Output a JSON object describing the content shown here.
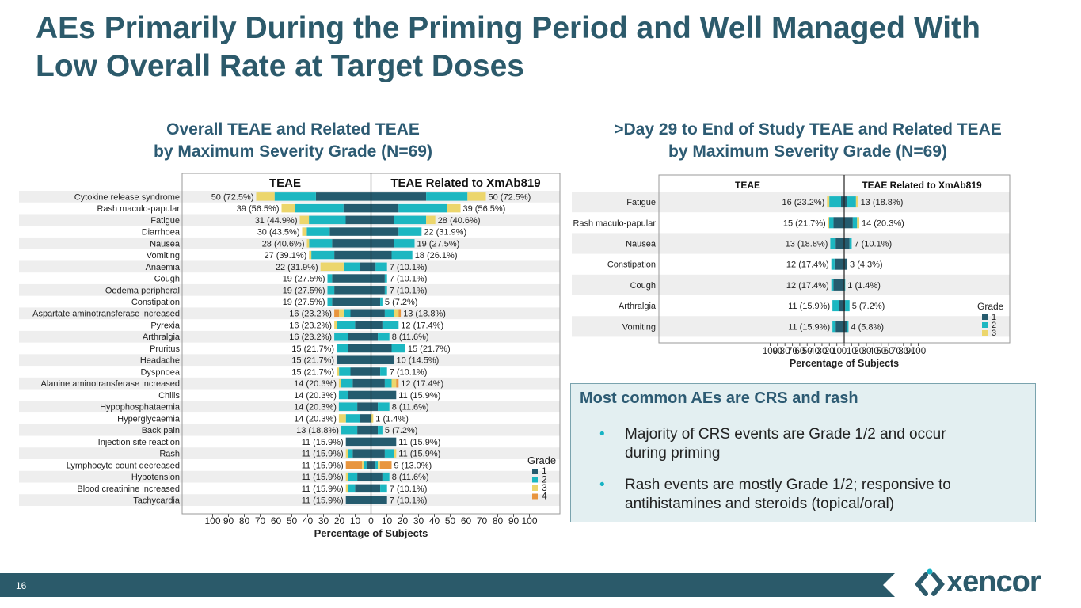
{
  "slide": {
    "title_line1": "AEs Primarily During the Priming Period and Well Managed With",
    "title_line2": "Low Overall Rate at Target Doses",
    "page_number": "16",
    "logo_text": "xencor"
  },
  "colors": {
    "title": "#2c5a6b",
    "subtitle": "#2d5b73",
    "grade1": "#255b6e",
    "grade2": "#1cb7c1",
    "grade3": "#ecd66c",
    "grade4": "#e8953e",
    "footer": "#2b5a6a",
    "callout_bg": "#e3eff1",
    "callout_border": "#7aa3ae"
  },
  "left_chart_title": {
    "line1": "Overall TEAE and Related TEAE",
    "line2": "by Maximum Severity Grade (N=69)"
  },
  "right_chart_title": {
    "line1": ">Day 29 to End of Study TEAE and Related TEAE",
    "line2": "by Maximum Severity Grade (N=69)"
  },
  "callout": {
    "heading": "Most common AEs are CRS and rash",
    "bullets": [
      {
        "line1": "Majority of CRS events are Grade 1/2 and occur",
        "line2": "during priming"
      },
      {
        "line1": "Rash events are mostly Grade 1/2; responsive to",
        "line2": "antihistamines and steroids (topical/oral)"
      }
    ]
  },
  "chart_data": [
    {
      "type": "bar",
      "subtype": "butterfly-stacked",
      "title": "Overall TEAE and Related TEAE by Maximum Severity Grade (N=69)",
      "left_panel_label": "TEAE",
      "right_panel_label": "TEAE Related to XmAb819",
      "xlabel": "Percentage of Subjects",
      "xlim": [
        -100,
        100
      ],
      "xticks": [
        "100",
        "90",
        "80",
        "70",
        "60",
        "50",
        "40",
        "30",
        "20",
        "10",
        "0",
        "10",
        "20",
        "30",
        "40",
        "50",
        "60",
        "70",
        "80",
        "90",
        "100"
      ],
      "legend_title": "Grade",
      "legend": [
        "1",
        "2",
        "3",
        "4"
      ],
      "legend_position": "bottom-right",
      "categories": [
        "Cytokine release syndrome",
        "Rash maculo-papular",
        "Fatigue",
        "Diarrhoea",
        "Nausea",
        "Vomiting",
        "Anaemia",
        "Cough",
        "Oedema peripheral",
        "Constipation",
        "Aspartate aminotransferase increased",
        "Pyrexia",
        "Arthralgia",
        "Pruritus",
        "Headache",
        "Dyspnoea",
        "Alanine aminotransferase increased",
        "Chills",
        "Hypophosphataemia",
        "Hyperglycaemia",
        "Back pain",
        "Injection site reaction",
        "Rash",
        "Lymphocyte count decreased",
        "Hypotension",
        "Blood creatinine increased",
        "Tachycardia"
      ],
      "teae_labels": [
        "50 (72.5%)",
        "39 (56.5%)",
        "31 (44.9%)",
        "30 (43.5%)",
        "28 (40.6%)",
        "27 (39.1%)",
        "22 (31.9%)",
        "19 (27.5%)",
        "19 (27.5%)",
        "19 (27.5%)",
        "16 (23.2%)",
        "16 (23.2%)",
        "16 (23.2%)",
        "15 (21.7%)",
        "15 (21.7%)",
        "15 (21.7%)",
        "14 (20.3%)",
        "14 (20.3%)",
        "14 (20.3%)",
        "14 (20.3%)",
        "13 (18.8%)",
        "11 (15.9%)",
        "11 (15.9%)",
        "11 (15.9%)",
        "11 (15.9%)",
        "11 (15.9%)",
        "11 (15.9%)"
      ],
      "related_labels": [
        "50 (72.5%)",
        "39 (56.5%)",
        "28 (40.6%)",
        "22 (31.9%)",
        "19 (27.5%)",
        "18 (26.1%)",
        "7 (10.1%)",
        "7 (10.1%)",
        "7 (10.1%)",
        "5 (7.2%)",
        "13 (18.8%)",
        "12 (17.4%)",
        "8 (11.6%)",
        "15 (21.7%)",
        "10 (14.5%)",
        "7 (10.1%)",
        "12 (17.4%)",
        "11 (15.9%)",
        "8 (11.6%)",
        "1 (1.4%)",
        "5 (7.2%)",
        "11 (15.9%)",
        "11 (15.9%)",
        "9 (13.0%)",
        "8 (11.6%)",
        "7 (10.1%)",
        "7 (10.1%)"
      ],
      "teae_series": [
        {
          "name": "1",
          "values": [
            34.8,
            17.4,
            16.0,
            26.1,
            24.6,
            23.2,
            7.2,
            24.6,
            23.2,
            24.6,
            13.0,
            10.1,
            14.5,
            14.5,
            21.7,
            13.0,
            11.6,
            14.5,
            8.7,
            7.2,
            8.7,
            15.9,
            11.6,
            2.9,
            8.7,
            10.1,
            15.9
          ]
        },
        {
          "name": "2",
          "values": [
            26.1,
            30.4,
            23.2,
            14.5,
            14.5,
            14.5,
            10.1,
            2.9,
            4.3,
            2.9,
            4.3,
            11.6,
            8.7,
            7.2,
            0,
            7.2,
            7.2,
            5.8,
            11.6,
            8.7,
            10.1,
            0,
            2.9,
            1.4,
            5.8,
            4.3,
            0
          ]
        },
        {
          "name": "3",
          "values": [
            11.6,
            8.7,
            5.8,
            2.9,
            1.4,
            1.4,
            14.6,
            0,
            0,
            0,
            2.9,
            1.5,
            0,
            0,
            0,
            1.5,
            1.5,
            0,
            0,
            4.4,
            0,
            0,
            1.4,
            1.4,
            1.4,
            1.5,
            0
          ]
        },
        {
          "name": "4",
          "values": [
            0,
            0,
            0,
            0,
            0,
            0,
            0,
            0,
            0,
            0,
            3.0,
            0,
            0,
            0,
            0,
            0,
            0,
            0,
            0,
            0,
            0,
            0,
            0,
            10.2,
            0,
            0,
            0
          ]
        }
      ],
      "related_series": [
        {
          "name": "1",
          "values": [
            34.8,
            17.4,
            14.5,
            17.4,
            14.5,
            13.0,
            2.9,
            8.7,
            8.7,
            5.8,
            8.7,
            7.2,
            4.3,
            13.0,
            14.5,
            5.8,
            8.7,
            15.9,
            4.3,
            0,
            4.3,
            15.9,
            8.7,
            2.9,
            7.2,
            5.8,
            10.1
          ]
        },
        {
          "name": "2",
          "values": [
            26.1,
            30.4,
            20.3,
            14.5,
            13.0,
            13.1,
            7.2,
            1.4,
            1.4,
            1.4,
            5.8,
            10.2,
            7.3,
            8.7,
            0,
            4.3,
            4.3,
            0,
            7.3,
            0,
            2.9,
            0,
            5.8,
            1.4,
            4.4,
            4.3,
            0
          ]
        },
        {
          "name": "3",
          "values": [
            11.6,
            8.7,
            5.8,
            0,
            0,
            0,
            0,
            0,
            0,
            0,
            2.9,
            0,
            0,
            0,
            0,
            0,
            2.9,
            0,
            0,
            1.4,
            0,
            0,
            1.4,
            1.4,
            0,
            0,
            0
          ]
        },
        {
          "name": "4",
          "values": [
            0,
            0,
            0,
            0,
            0,
            0,
            0,
            0,
            0,
            0,
            1.4,
            0,
            0,
            0,
            0,
            0,
            1.5,
            0,
            0,
            0,
            0,
            0,
            0,
            7.3,
            0,
            0,
            0
          ]
        }
      ]
    },
    {
      "type": "bar",
      "subtype": "butterfly-stacked",
      "title": ">Day 29 to End of Study TEAE and Related TEAE by Maximum Severity Grade (N=69)",
      "left_panel_label": "TEAE",
      "right_panel_label": "TEAE Related to XmAb819",
      "xlabel": "Percentage of Subjects",
      "xlim": [
        -100,
        100
      ],
      "xticks": [
        "100",
        "90",
        "80",
        "70",
        "60",
        "50",
        "40",
        "30",
        "20",
        "10",
        "0",
        "10",
        "20",
        "30",
        "40",
        "50",
        "60",
        "70",
        "80",
        "90",
        "100"
      ],
      "legend_title": "Grade",
      "legend": [
        "1",
        "2",
        "3"
      ],
      "legend_position": "bottom-right",
      "categories": [
        "Fatigue",
        "Rash maculo-papular",
        "Nausea",
        "Constipation",
        "Cough",
        "Arthralgia",
        "Vomiting"
      ],
      "teae_labels": [
        "16 (23.2%)",
        "15 (21.7%)",
        "13 (18.8%)",
        "12 (17.4%)",
        "12 (17.4%)",
        "11 (15.9%)",
        "11 (15.9%)"
      ],
      "related_labels": [
        "13 (18.8%)",
        "14 (20.3%)",
        "7 (10.1%)",
        "3 (4.3%)",
        "1 (1.4%)",
        "5 (7.2%)",
        "4 (5.8%)"
      ],
      "teae_series": [
        {
          "name": "1",
          "values": [
            4.3,
            14.5,
            11.6,
            13.0,
            14.5,
            7.2,
            11.6
          ]
        },
        {
          "name": "2",
          "values": [
            15.9,
            5.8,
            7.2,
            4.4,
            2.9,
            8.7,
            4.3
          ]
        },
        {
          "name": "3",
          "values": [
            3.0,
            1.4,
            0,
            0,
            0,
            0,
            0
          ]
        }
      ],
      "related_series": [
        {
          "name": "1",
          "values": [
            4.3,
            11.6,
            7.2,
            4.3,
            0,
            1.4,
            4.3
          ]
        },
        {
          "name": "2",
          "values": [
            11.6,
            5.8,
            2.9,
            0,
            1.4,
            5.8,
            1.5
          ]
        },
        {
          "name": "3",
          "values": [
            2.9,
            2.9,
            0,
            0,
            0,
            0,
            0
          ]
        }
      ]
    }
  ]
}
